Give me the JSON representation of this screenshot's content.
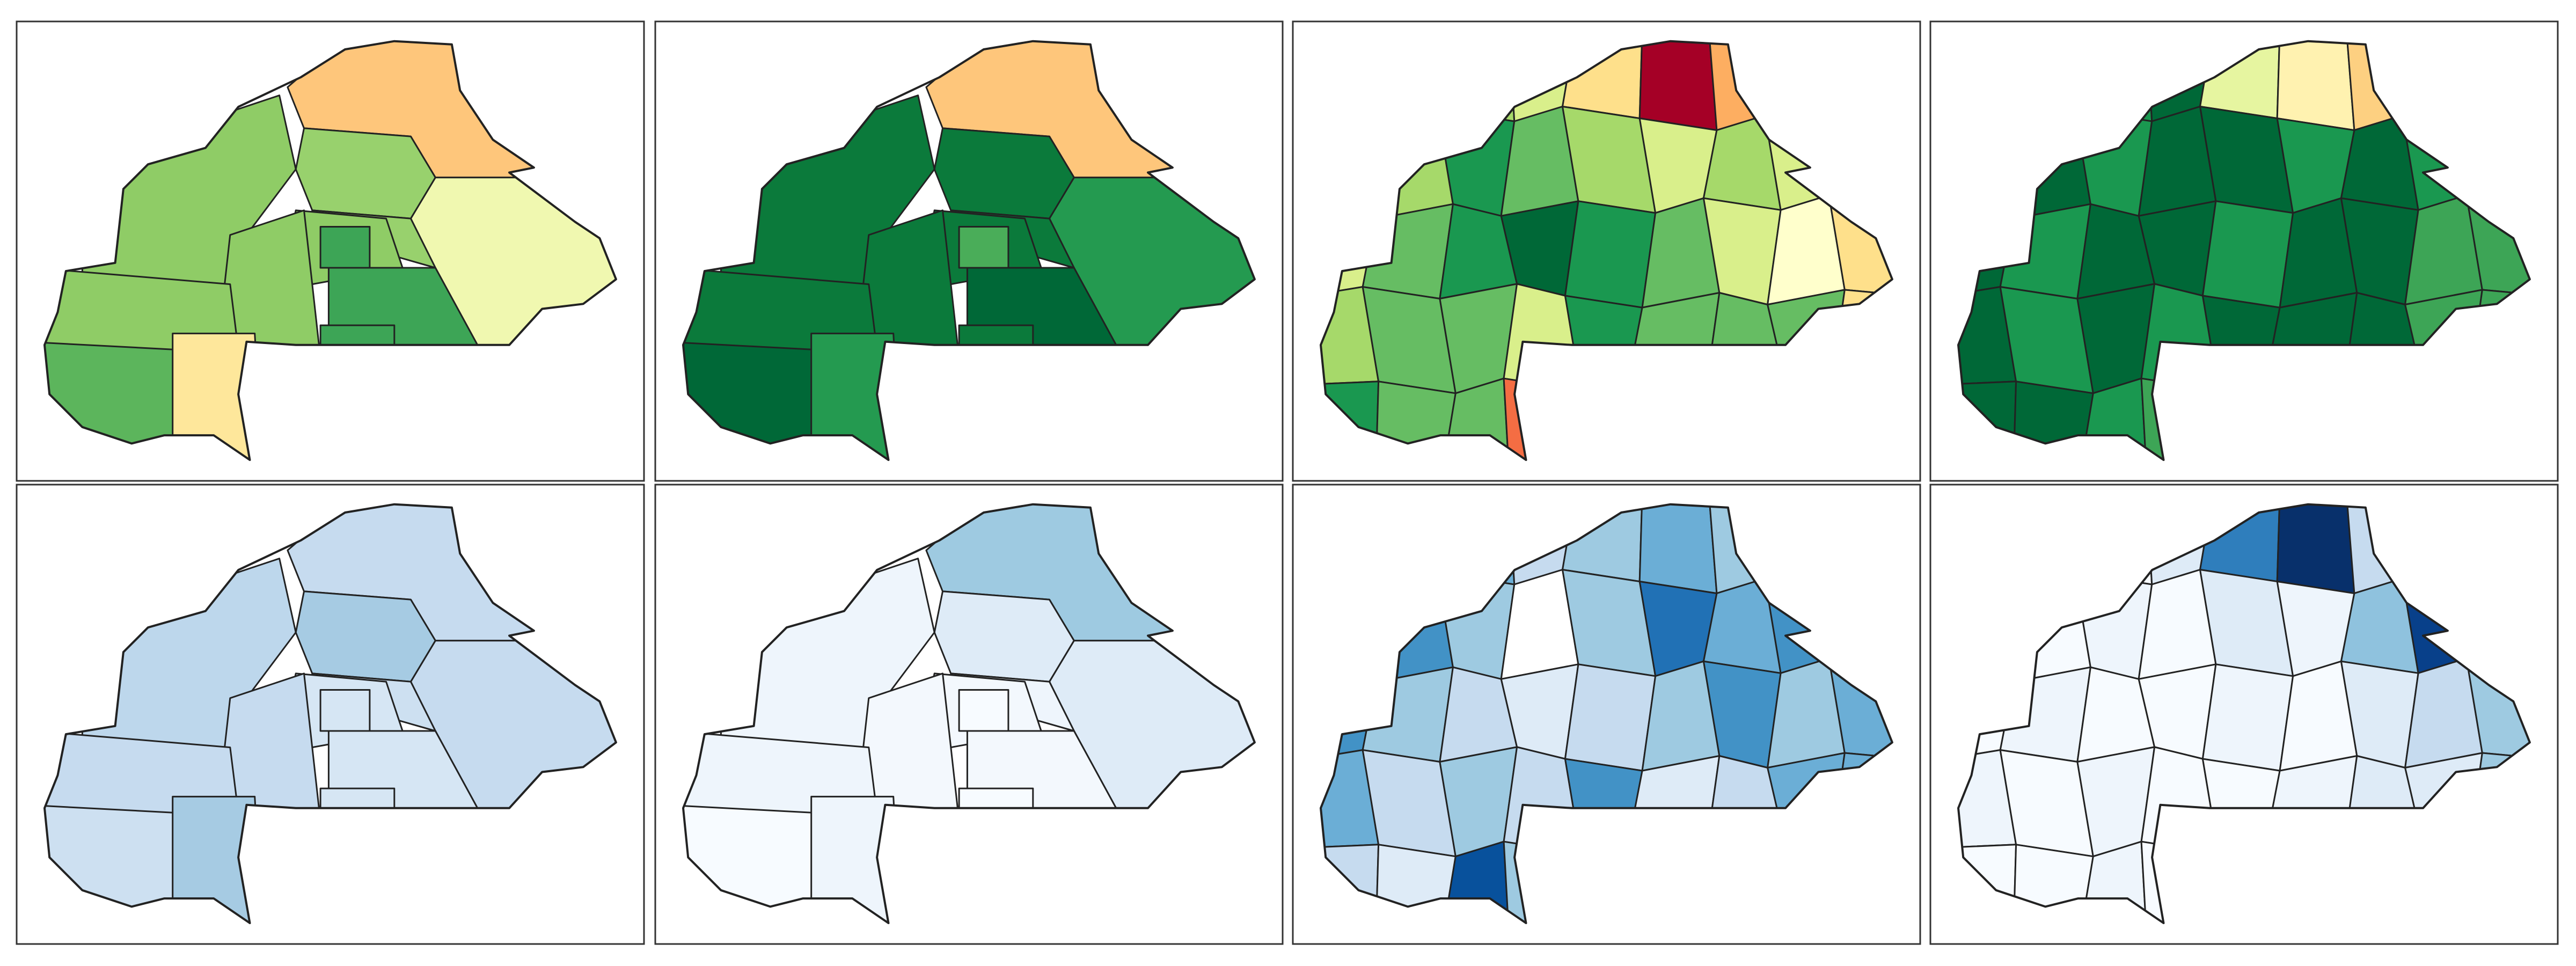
{
  "panels": [
    {
      "fills": [
        "#fec67b",
        "#f0f8b0",
        "#98d16d",
        "#8fcc66",
        "#98d16d",
        "#8fcc66",
        "#3da556",
        "#8fcc66",
        "#8fcc66",
        "#5cb55c",
        "#fee79b",
        "#3da556",
        "#3da556"
      ]
    },
    {
      "fills": [
        "#fec67b",
        "#249a50",
        "#0b7a3b",
        "#0b7a3b",
        "#0b7a3b",
        "#0b7a3b",
        "#006837",
        "#0b7a3b",
        "#0b7a3b",
        "#006837",
        "#249a50",
        "#0b7a3b",
        "#4aad59"
      ]
    },
    {
      "fills": [
        "#a6d96a",
        "#66bd63",
        "#a6d96a",
        "#d9ef8b",
        "#fee08b",
        "#a50026",
        "#fdae61",
        "#d9ef8b",
        "#fee08b",
        "#66bd63",
        "#a6d96a",
        "#1a9850",
        "#66bd63",
        "#a6d96a",
        "#d9ef8b",
        "#a6d96a",
        "#d9ef8b",
        "#a6d96a",
        "#d9ef8b",
        "#66bd63",
        "#1a9850",
        "#006837",
        "#1a9850",
        "#66bd63",
        "#d9ef8b",
        "#ffffcc",
        "#fee08b",
        "#a6d96a",
        "#66bd63",
        "#66bd63",
        "#d9ef8b",
        "#1a9850",
        "#66bd63",
        "#66bd63",
        "#66bd63",
        "#fee08b",
        "#1a9850",
        "#66bd63",
        "#66bd63",
        "#f46d43",
        "#fee08b",
        "#66bd63",
        "#66bd63",
        "#66bd63",
        "#fee08b"
      ]
    },
    {
      "fills": [
        "#1a9850",
        "#006837",
        "#1a9850",
        "#006837",
        "#e6f5a0",
        "#fff2b0",
        "#fdd081",
        "#ffe89c",
        "#1a9850",
        "#006837",
        "#006837",
        "#1a9850",
        "#006837",
        "#006837",
        "#1a9850",
        "#006837",
        "#1a9850",
        "#3da556",
        "#006837",
        "#1a9850",
        "#006837",
        "#006837",
        "#1a9850",
        "#006837",
        "#006837",
        "#3da556",
        "#3da556",
        "#006837",
        "#1a9850",
        "#006837",
        "#1a9850",
        "#006837",
        "#006837",
        "#006837",
        "#3da556",
        "#3da556",
        "#006837",
        "#006837",
        "#1a9850",
        "#3da556",
        "#006837",
        "#006837",
        "#1a9850",
        "#3da556",
        "#3da556"
      ]
    },
    {
      "fills": [
        "#c6dbef",
        "#c6dbef",
        "#a6cbe3",
        "#bdd7ec",
        "#cde0f1",
        "#d6e6f4",
        "#d6e6f4",
        "#c6dbef",
        "#c6dbef",
        "#cde0f1",
        "#a6cbe3",
        "#d6e6f4",
        "#d6e6f4"
      ]
    },
    {
      "fills": [
        "#9ecae1",
        "#deebf7",
        "#deebf7",
        "#eef5fc",
        "#eef5fc",
        "#f3f8fd",
        "#f3f8fd",
        "#f3f8fd",
        "#eef5fc",
        "#f7fbff",
        "#eef5fc",
        "#f7fbff",
        "#f7fbff"
      ]
    },
    {
      "fills": [
        "#c6dbef",
        "#4292c6",
        "#6baed6",
        "#c6dbef",
        "#9ecae1",
        "#6baed6",
        "#9ecae1",
        "#c6dbef",
        "#9ecae1",
        "#6baed6",
        "#4292c6",
        "#9ecae1",
        "#ffffff",
        "#9ecae1",
        "#2171b5",
        "#6baed6",
        "#4292c6",
        "#9ecae1",
        "#4292c6",
        "#9ecae1",
        "#c6dbef",
        "#deebf7",
        "#c6dbef",
        "#9ecae1",
        "#4292c6",
        "#9ecae1",
        "#6baed6",
        "#6baed6",
        "#c6dbef",
        "#9ecae1",
        "#c6dbef",
        "#4292c6",
        "#deebf7",
        "#c6dbef",
        "#6baed6",
        "#6baed6",
        "#c6dbef",
        "#deebf7",
        "#08519c",
        "#9ecae1",
        "#c6dbef",
        "#deebf7",
        "#6baed6",
        "#6baed6",
        "#6baed6"
      ]
    },
    {
      "fills": [
        "#f7fbff",
        "#eef5fc",
        "#f7fbff",
        "#deebf7",
        "#2f7ebc",
        "#08306b",
        "#c6dbef",
        "#deebf7",
        "#f7fbff",
        "#eef5fc",
        "#f7fbff",
        "#eef5fc",
        "#f7fbff",
        "#deebf7",
        "#eef5fc",
        "#8fc2de",
        "#08408a",
        "#eef5fc",
        "#f7fbff",
        "#eef5fc",
        "#f7fbff",
        "#f7fbff",
        "#eef5fc",
        "#f7fbff",
        "#deebf7",
        "#c6dbef",
        "#9ecae1",
        "#eef5fc",
        "#f7fbff",
        "#eef5fc",
        "#f7fbff",
        "#f7fbff",
        "#eef5fc",
        "#deebf7",
        "#deebf7",
        "#9ecae1",
        "#f7fbff",
        "#f7fbff",
        "#eef5fc",
        "#f7fbff",
        "#f7fbff",
        "#eef5fc",
        "#6baed6",
        "#deebf7",
        "#9ecae1"
      ]
    }
  ]
}
